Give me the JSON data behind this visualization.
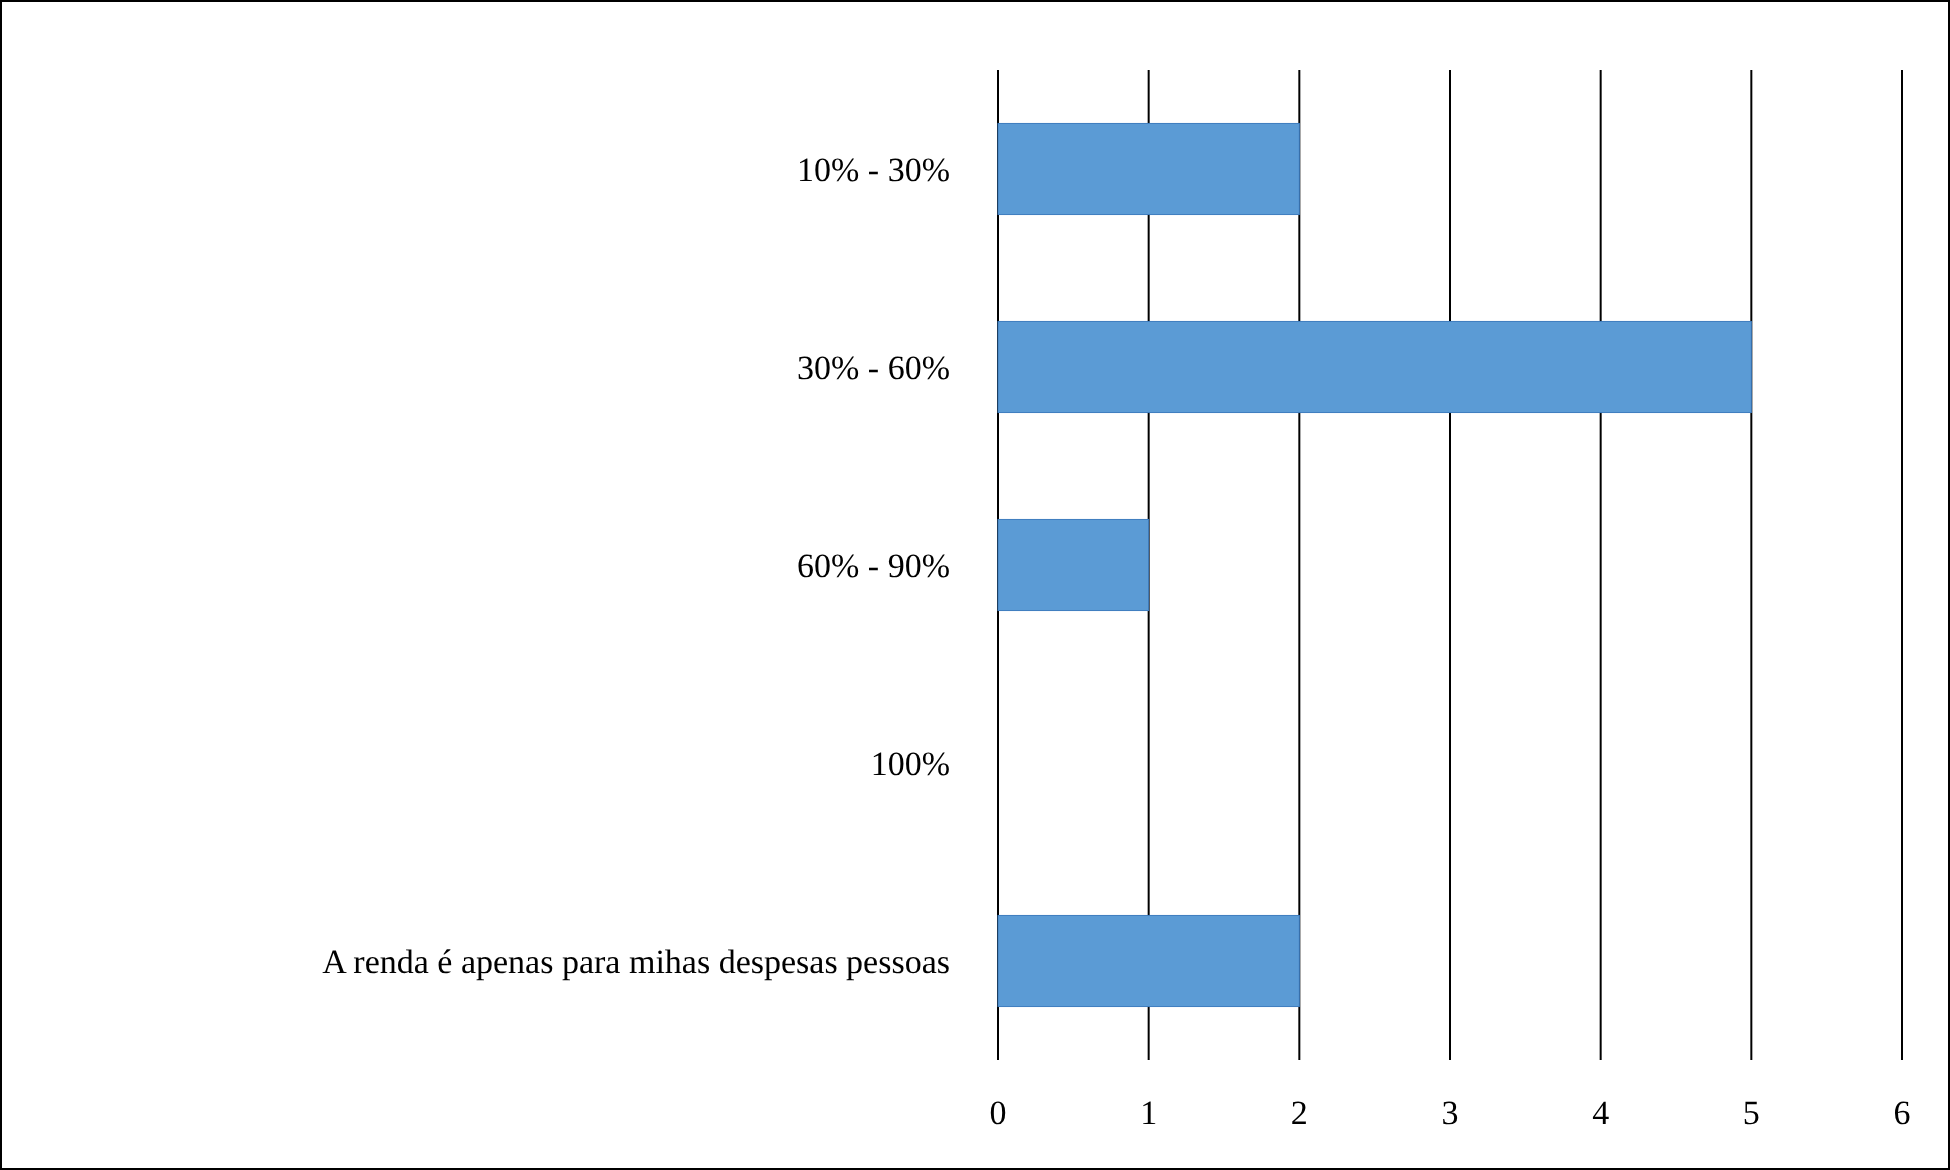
{
  "chart_data": {
    "type": "bar",
    "orientation": "horizontal",
    "categories": [
      "10% - 30%",
      "30% - 60%",
      "60% - 90%",
      "100%",
      "A renda é apenas para mihas despesas pessoas"
    ],
    "values": [
      2,
      5,
      1,
      0,
      2
    ],
    "color": "#5b9bd5",
    "xlim": [
      0,
      6
    ],
    "xticks": [
      0,
      1,
      2,
      3,
      4,
      5,
      6
    ],
    "grid": "x"
  }
}
